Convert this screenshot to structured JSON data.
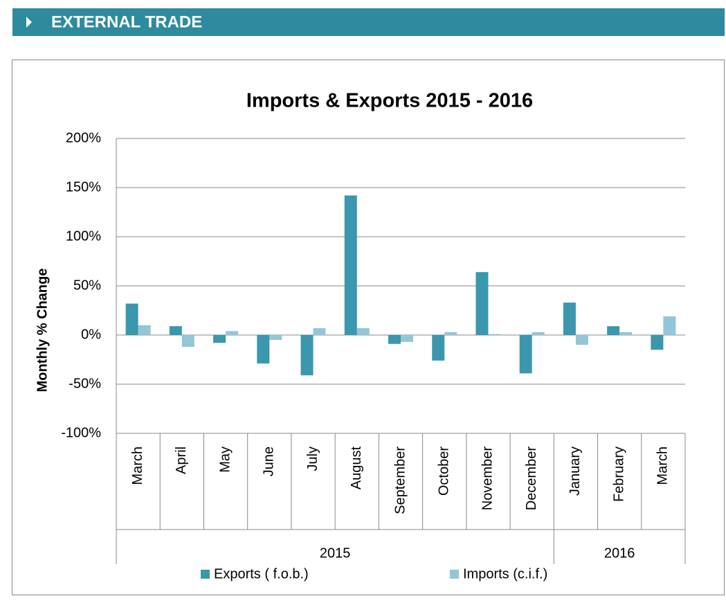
{
  "header": {
    "title": "EXTERNAL TRADE"
  },
  "chart_data": {
    "type": "bar",
    "title": "Imports & Exports  2015 - 2016",
    "y_label": "Monthly % Change",
    "categories": [
      "March",
      "April",
      "May",
      "June",
      "July",
      "August",
      "September",
      "October",
      "November",
      "December",
      "January",
      "February",
      "March"
    ],
    "category_groups": [
      "2015",
      "2015",
      "2015",
      "2015",
      "2015",
      "2015",
      "2015",
      "2015",
      "2015",
      "2015",
      "2016",
      "2016",
      "2016"
    ],
    "series": [
      {
        "name": "Exports ( f.o.b.)",
        "color": "#3a97ae",
        "values": [
          32,
          9,
          -8,
          -29,
          -41,
          142,
          -9,
          -26,
          64,
          -39,
          33,
          9,
          -15
        ]
      },
      {
        "name": "Imports (c.i.f.)",
        "color": "#93c6d6",
        "values": [
          10,
          -12,
          4,
          -5,
          7,
          7,
          -7,
          3,
          1,
          3,
          -10,
          3,
          19
        ]
      }
    ],
    "ylim": [
      -100,
      200
    ],
    "yticks": [
      {
        "value": -100,
        "label": "-100%"
      },
      {
        "value": -50,
        "label": "-50%"
      },
      {
        "value": 0,
        "label": "0%"
      },
      {
        "value": 50,
        "label": "50%"
      },
      {
        "value": 100,
        "label": "100%"
      },
      {
        "value": 150,
        "label": "150%"
      },
      {
        "value": 200,
        "label": "200%"
      }
    ],
    "grid": true,
    "legend": "bottom"
  }
}
